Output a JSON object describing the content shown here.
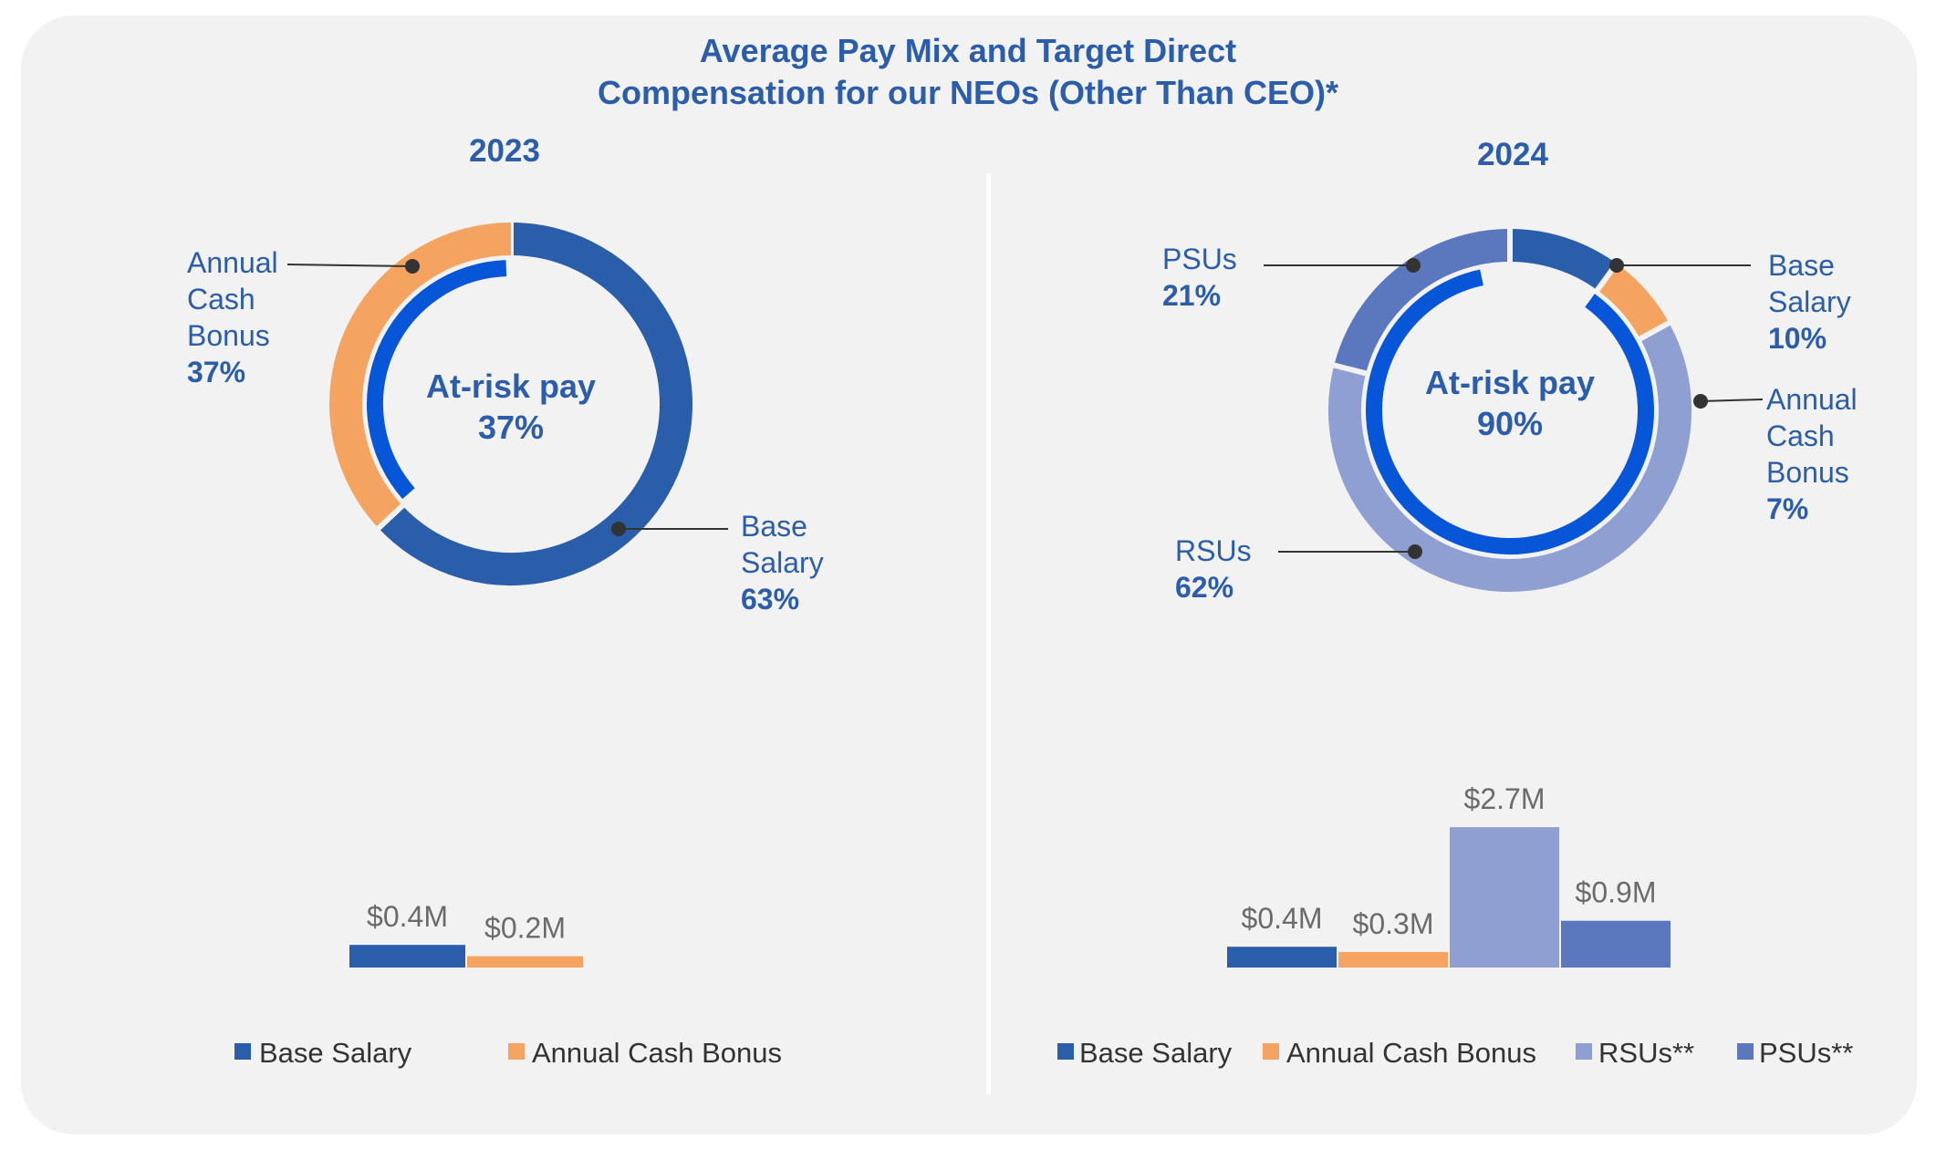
{
  "title_line1": "Average Pay Mix and Target Direct",
  "title_line2": "Compensation for our NEOs (Other Than CEO)*",
  "colors": {
    "base_salary": "#2a5daa",
    "annual_cash_bonus": "#f4a460",
    "rsus": "#8f9fd2",
    "psus": "#5b78be",
    "at_risk_ring": "#0856d8",
    "title": "#2b5dab"
  },
  "chart_data": [
    {
      "type": "pie",
      "year": "2023",
      "center_label": "At-risk pay",
      "center_value": "37%",
      "at_risk_pct": 37,
      "slices": [
        {
          "name": "Base Salary",
          "value": 63,
          "label": "63%"
        },
        {
          "name": "Annual Cash Bonus",
          "value": 37,
          "label": "37%"
        }
      ]
    },
    {
      "type": "pie",
      "year": "2024",
      "center_label": "At-risk pay",
      "center_value": "90%",
      "at_risk_pct": 90,
      "slices": [
        {
          "name": "Base Salary",
          "value": 10,
          "label": "10%"
        },
        {
          "name": "Annual Cash Bonus",
          "value": 7,
          "label": "7%"
        },
        {
          "name": "RSUs",
          "value": 62,
          "label": "62%"
        },
        {
          "name": "PSUs",
          "value": 21,
          "label": "21%"
        }
      ]
    },
    {
      "type": "bar",
      "year": "2023",
      "categories": [
        "Base Salary",
        "Annual Cash Bonus"
      ],
      "values": [
        0.4,
        0.2
      ],
      "data_labels": [
        "$0.4M",
        "$0.2M"
      ],
      "unit": "$M"
    },
    {
      "type": "bar",
      "year": "2024",
      "categories": [
        "Base Salary",
        "Annual Cash Bonus",
        "RSUs**",
        "PSUs**"
      ],
      "values": [
        0.4,
        0.3,
        2.7,
        0.9
      ],
      "data_labels": [
        "$0.4M",
        "$0.3M",
        "$2.7M",
        "$0.9M"
      ],
      "unit": "$M"
    }
  ],
  "donut2023_labels": {
    "bonus": [
      "Annual",
      "Cash",
      "Bonus"
    ],
    "bonus_pct": "37%",
    "base": [
      "Base",
      "Salary"
    ],
    "base_pct": "63%"
  },
  "donut2024_labels": {
    "psus": [
      "PSUs"
    ],
    "psus_pct": "21%",
    "base": [
      "Base",
      "Salary"
    ],
    "base_pct": "10%",
    "bonus": [
      "Annual",
      "Cash",
      "Bonus"
    ],
    "bonus_pct": "7%",
    "rsus": [
      "RSUs"
    ],
    "rsus_pct": "62%"
  },
  "legend_2023": [
    "Base Salary",
    "Annual Cash Bonus"
  ],
  "legend_2024": [
    "Base Salary",
    "Annual Cash Bonus",
    "RSUs**",
    "PSUs**"
  ]
}
